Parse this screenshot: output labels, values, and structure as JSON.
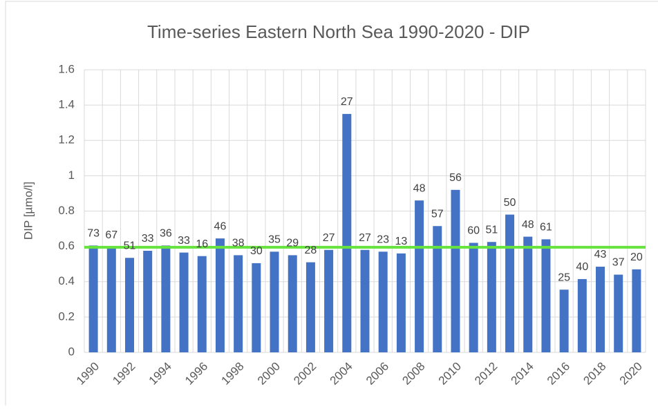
{
  "chart_data": {
    "type": "bar",
    "title": "Time-series Eastern North Sea 1990-2020 - DIP",
    "y_label": "DIP [µmo/l]",
    "categories": [
      "1990",
      null,
      "1992",
      null,
      "1994",
      null,
      "1996",
      null,
      "1998",
      null,
      "2000",
      null,
      "2002",
      null,
      "2004",
      null,
      "2006",
      null,
      "2008",
      null,
      "2010",
      null,
      "2012",
      null,
      "2014",
      null,
      "2016",
      null,
      "2018",
      null,
      "2020"
    ],
    "values": [
      0.605,
      0.595,
      0.535,
      0.575,
      0.605,
      0.565,
      0.545,
      0.645,
      0.55,
      0.505,
      0.57,
      0.55,
      0.51,
      0.58,
      1.35,
      0.58,
      0.57,
      0.56,
      0.86,
      0.715,
      0.92,
      0.62,
      0.625,
      0.78,
      0.655,
      0.64,
      0.355,
      0.415,
      0.485,
      0.44,
      0.47
    ],
    "data_labels": [
      73,
      67,
      51,
      33,
      36,
      33,
      16,
      46,
      38,
      30,
      35,
      29,
      28,
      27,
      27,
      27,
      23,
      13,
      48,
      57,
      56,
      60,
      51,
      50,
      48,
      61,
      25,
      40,
      43,
      37,
      20
    ],
    "color": "#4472c4",
    "reference_line": {
      "value": 0.595,
      "color": "#66e33c"
    },
    "ylim": [
      0,
      1.6
    ],
    "yticks": [
      0,
      0.2,
      0.4,
      0.6,
      0.8,
      1,
      1.2,
      1.4,
      1.6
    ],
    "grid": true
  }
}
